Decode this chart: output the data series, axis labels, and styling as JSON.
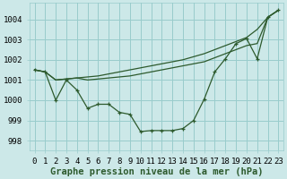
{
  "background_color": "#cce8e8",
  "grid_color": "#99cccc",
  "line_color": "#2d5a2d",
  "xlabel": "Graphe pression niveau de la mer (hPa)",
  "ylim": [
    997.5,
    1004.8
  ],
  "xlim": [
    -0.5,
    23.5
  ],
  "yticks": [
    998,
    999,
    1000,
    1001,
    1002,
    1003,
    1004
  ],
  "xticks": [
    0,
    1,
    2,
    3,
    4,
    5,
    6,
    7,
    8,
    9,
    10,
    11,
    12,
    13,
    14,
    15,
    16,
    17,
    18,
    19,
    20,
    21,
    22,
    23
  ],
  "series": [
    {
      "x": [
        0,
        1,
        2,
        3,
        4,
        5,
        6,
        7,
        8,
        9,
        10,
        11,
        12,
        13,
        14,
        15,
        16,
        17,
        18,
        19,
        20,
        21,
        22,
        23
      ],
      "y": [
        1001.5,
        1001.4,
        1001.0,
        1001.05,
        1001.1,
        1001.15,
        1001.2,
        1001.3,
        1001.4,
        1001.5,
        1001.6,
        1001.7,
        1001.8,
        1001.9,
        1002.0,
        1002.15,
        1002.3,
        1002.5,
        1002.7,
        1002.9,
        1003.1,
        1003.5,
        1004.1,
        1004.45
      ],
      "has_markers": false
    },
    {
      "x": [
        0,
        1,
        2,
        3,
        4,
        5,
        6,
        7,
        8,
        9,
        10,
        11,
        12,
        13,
        14,
        15,
        16,
        17,
        18,
        19,
        20,
        21,
        22,
        23
      ],
      "y": [
        1001.5,
        1001.4,
        1001.0,
        1001.05,
        1001.1,
        1001.0,
        1001.05,
        1001.1,
        1001.15,
        1001.2,
        1001.3,
        1001.4,
        1001.5,
        1001.6,
        1001.7,
        1001.8,
        1001.9,
        1002.1,
        1002.3,
        1002.5,
        1002.7,
        1002.8,
        1004.1,
        1004.45
      ],
      "has_markers": false
    },
    {
      "x": [
        0,
        1,
        2,
        3,
        4,
        5,
        6,
        7,
        8,
        9,
        10,
        11,
        12,
        13,
        14,
        15,
        16,
        17,
        18,
        19,
        20,
        21,
        22,
        23
      ],
      "y": [
        1001.5,
        1001.4,
        1000.0,
        1001.0,
        1000.5,
        999.6,
        999.8,
        999.8,
        999.4,
        999.3,
        998.45,
        998.5,
        998.5,
        998.5,
        998.6,
        999.0,
        1000.05,
        1001.4,
        1002.05,
        1002.8,
        1003.05,
        1002.05,
        1004.1,
        1004.45
      ],
      "has_markers": true
    }
  ],
  "tick_fontsize": 6.5,
  "xlabel_fontsize": 7.5
}
